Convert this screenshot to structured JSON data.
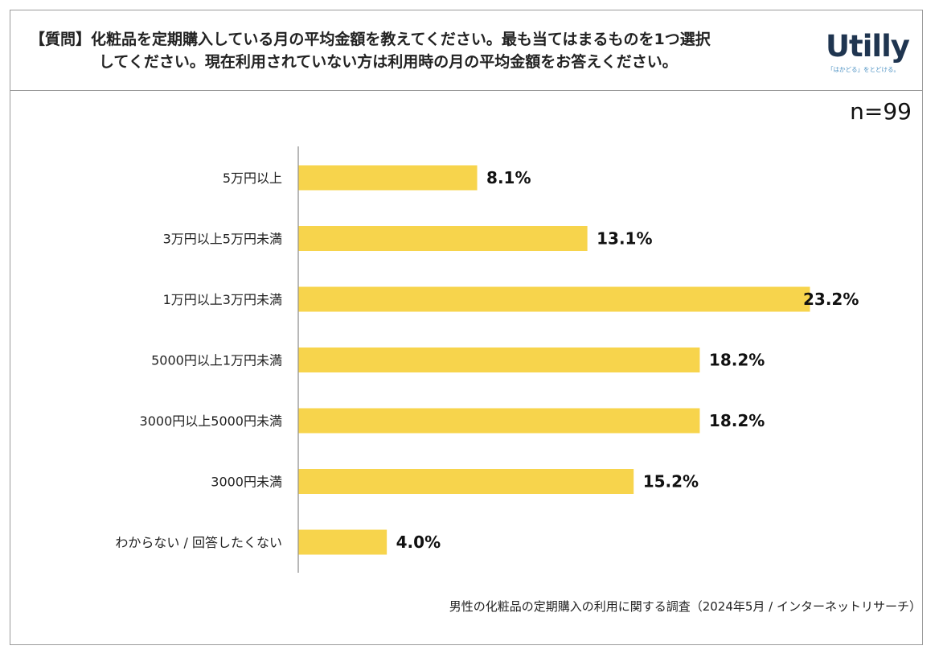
{
  "question": {
    "line1": "【質問】化粧品を定期購入している月の平均金額を教えてください。最も当てはまるものを1つ選択",
    "line2": "してください。現在利用されていない方は利用時の月の平均金額をお答えください。"
  },
  "logo": {
    "word": "Utilly",
    "tagline": "「はかどる」をとどける。"
  },
  "sample_size": "n=99",
  "source": "男性の化粧品の定期購入の利用に関する調査（2024年5月 / インターネットリサーチ）",
  "colors": {
    "bar": "#f7d44c",
    "axis": "#888888",
    "logo_text": "#1f3550",
    "logo_accent": "#4a90c2"
  },
  "chart_data": {
    "type": "bar",
    "orientation": "horizontal",
    "categories": [
      "5万円以上",
      "3万円以上5万円未満",
      "1万円以上3万円未満",
      "5000円以上1万円未満",
      "3000円以上5000円未満",
      "3000円未満",
      "わからない / 回答したくない"
    ],
    "values": [
      8.1,
      13.1,
      23.2,
      18.2,
      18.2,
      15.2,
      4.0
    ],
    "value_labels": [
      "8.1%",
      "13.1%",
      "23.2%",
      "18.2%",
      "18.2%",
      "15.2%",
      "4.0%"
    ],
    "unit": "%",
    "xlim": [
      0,
      23.2
    ],
    "grid": false,
    "legend": false
  }
}
